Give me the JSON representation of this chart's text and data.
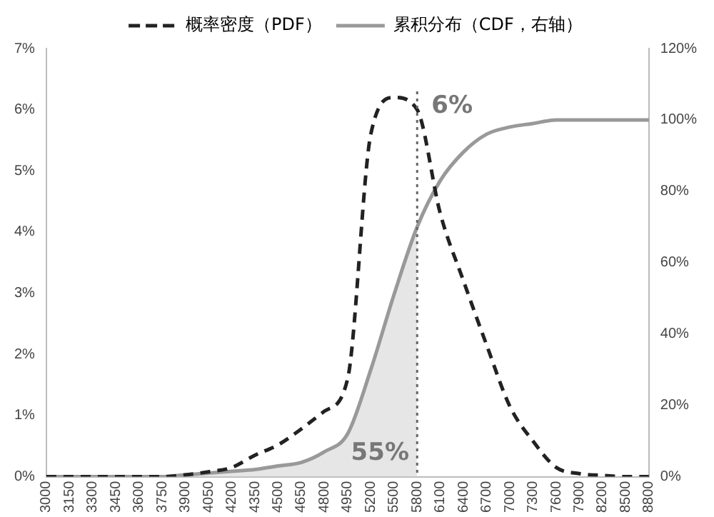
{
  "chart_data": {
    "type": "line",
    "categories": [
      "3000",
      "3150",
      "3300",
      "3450",
      "3600",
      "3750",
      "3900",
      "4050",
      "4200",
      "4350",
      "4500",
      "4650",
      "4800",
      "4950",
      "5200",
      "5500",
      "5800",
      "6100",
      "6400",
      "6700",
      "7000",
      "7300",
      "7600",
      "7900",
      "8200",
      "8500",
      "8800"
    ],
    "series": [
      {
        "name": "概率密度（PDF）",
        "color": "#222222",
        "line_style": "dashed",
        "values": [
          0,
          0,
          0,
          0,
          0,
          0,
          0.03,
          0.08,
          0.15,
          0.35,
          0.52,
          0.78,
          1.07,
          1.6,
          5.6,
          6.2,
          6,
          4.3,
          3.2,
          2.15,
          1.15,
          0.58,
          0.15,
          0.05,
          0.02,
          0,
          0
        ]
      },
      {
        "name": "累积分布（CDF，右轴）",
        "color": "#999999",
        "axis": "y2",
        "values": [
          0,
          0,
          0,
          0,
          0,
          0,
          0.5,
          1,
          1.5,
          2,
          3,
          4,
          7,
          12,
          30,
          51,
          70,
          83,
          91,
          96,
          98,
          99,
          100,
          100,
          100,
          100,
          100
        ]
      },
      {
        "type": "area",
        "color": "#e6e6e6",
        "axis": "y2",
        "values": [
          0,
          0,
          0,
          0,
          0,
          0,
          0.5,
          1,
          1.5,
          2,
          3,
          4,
          7,
          12,
          30,
          51,
          70,
          null,
          null,
          null,
          null,
          null,
          null,
          null,
          null,
          null,
          null
        ]
      }
    ],
    "ylim": [
      0,
      7
    ],
    "yticks": [
      {
        "value": 0,
        "label": "0%"
      },
      {
        "value": 1,
        "label": "1%"
      },
      {
        "value": 2,
        "label": "2%"
      },
      {
        "value": 3,
        "label": "3%"
      },
      {
        "value": 4,
        "label": "4%"
      },
      {
        "value": 5,
        "label": "5%"
      },
      {
        "value": 6,
        "label": "6%"
      },
      {
        "value": 7,
        "label": "7%"
      }
    ],
    "y2lim": [
      0,
      120
    ],
    "y2ticks": [
      {
        "value": 0,
        "label": "0%"
      },
      {
        "value": 20,
        "label": "20%"
      },
      {
        "value": 40,
        "label": "40%"
      },
      {
        "value": 60,
        "label": "60%"
      },
      {
        "value": 80,
        "label": "80%"
      },
      {
        "value": 100,
        "label": "100%"
      },
      {
        "value": 120,
        "label": "120%"
      }
    ],
    "ref_lines": [
      {
        "axis": "x",
        "value": "5800",
        "color": "#666666",
        "line_style": "dotted"
      }
    ],
    "annotations": [
      {
        "text": "6%",
        "x": "5800",
        "y": 6
      },
      "55%"
    ],
    "legend": "top",
    "grid": false,
    "marker": "none"
  }
}
